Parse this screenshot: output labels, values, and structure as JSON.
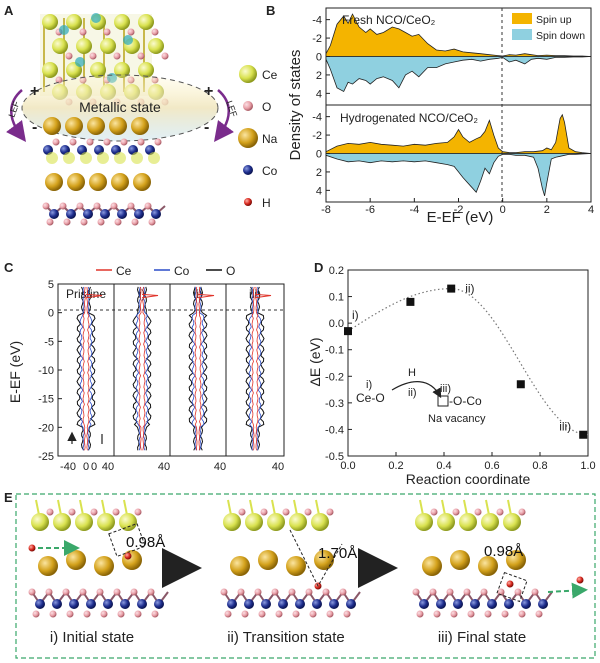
{
  "panels": {
    "A": {
      "label": "A",
      "metallic": "Metallic state",
      "plus": "+",
      "minus": "-",
      "lef_left": "LEF",
      "lef_right": "LEF",
      "legend": [
        {
          "symbol": "Ce",
          "color": "#d9e24f"
        },
        {
          "symbol": "O",
          "color": "#e9a0a8"
        },
        {
          "symbol": "Na",
          "color": "#d4a21c"
        },
        {
          "symbol": "Co",
          "color": "#1f2f8f"
        },
        {
          "symbol": "H",
          "color": "#d8281e"
        }
      ]
    },
    "B": {
      "label": "B",
      "top_title": "Fresh NCO/CeO₂",
      "bottom_title": "Hydrogenated NCO/CeO₂",
      "legend": {
        "up": "Spin up",
        "down": "Spin down"
      },
      "ylabel": "Density of states",
      "xlabel": "E-EF (eV)",
      "top_yticks": [
        "-4",
        "-2",
        "0",
        "2",
        "4"
      ],
      "bottom_yticks": [
        "-4",
        "-2",
        "0",
        "2",
        "4"
      ],
      "xticks": [
        "-8",
        "-6",
        "-4",
        "-2",
        "0",
        "2",
        "4"
      ]
    },
    "C": {
      "label": "C",
      "legend": [
        "Ce",
        "Co",
        "O"
      ],
      "legend_colors": [
        "#e0342a",
        "#2a4cc8",
        "#111111"
      ],
      "columns": [
        "Pristine",
        "i)",
        "ii)",
        "iii)"
      ],
      "yticks": [
        "5",
        "0",
        "-5",
        "-10",
        "-15",
        "-20",
        "-25"
      ],
      "xticks": [
        "-40",
        "0",
        "40",
        "40",
        "40",
        "40"
      ],
      "ylabel": "E-EF (eV)"
    },
    "D": {
      "label": "D",
      "ylabel": "ΔE (eV)",
      "xlabel": "Reaction coordinate",
      "yticks": [
        "0.2",
        "0.1",
        "0.0",
        "-0.1",
        "-0.2",
        "-0.3",
        "-0.4",
        "-0.5"
      ],
      "xticks": [
        "0.0",
        "0.2",
        "0.4",
        "0.6",
        "0.8",
        "1.0"
      ],
      "point_labels": [
        "i)",
        "ii)",
        "iii)"
      ],
      "scheme": {
        "left": "Ce-O",
        "i": "i)",
        "ii": "ii)",
        "iii": "iii)",
        "h": "H",
        "right": "-O-Co",
        "vacancy": "Na vacancy"
      }
    },
    "E": {
      "label": "E",
      "captions": [
        "i) Initial state",
        "ii) Transition state",
        "iii) Final state"
      ],
      "distances": [
        "0.98Å",
        "1.70Å",
        "0.98Å"
      ]
    }
  },
  "colors": {
    "spin_up": "#f4b400",
    "spin_down": "#8fd0e0",
    "ce": "#e0342a",
    "co": "#2a4cc8",
    "o": "#111111",
    "green_dash": "#3aa86a"
  },
  "chart_data": [
    {
      "type": "area",
      "title": "Fresh NCO/CeO₂",
      "xlabel": "E-EF (eV)",
      "ylabel": "Density of states",
      "xlim": [
        -8,
        4
      ],
      "ylim": [
        -5,
        5
      ],
      "series": [
        {
          "name": "Spin up",
          "x": [
            -8,
            -7.8,
            -7.5,
            -7.2,
            -7.0,
            -6.8,
            -6.5,
            -6.2,
            -6.0,
            -5.7,
            -5.4,
            -5.0,
            -4.7,
            -4.4,
            -4.1,
            -3.8,
            -3.4,
            -3.0,
            -2.6,
            -2.2,
            -1.8,
            -1.4,
            -1.0,
            -0.6,
            -0.2,
            0.0,
            0.3,
            0.6,
            1.0,
            1.3,
            1.6,
            2.0,
            2.4,
            2.8,
            3.2,
            3.6,
            4.0
          ],
          "y": [
            0.3,
            1.2,
            3.5,
            4.4,
            3.6,
            4.6,
            3.2,
            2.6,
            3.0,
            2.4,
            2.6,
            3.2,
            3.0,
            2.6,
            2.2,
            2.4,
            1.4,
            0.7,
            0.6,
            0.8,
            0.5,
            0.4,
            0.3,
            0.2,
            0.1,
            0.05,
            0.2,
            0.15,
            0.3,
            0.2,
            0.1,
            0.15,
            0.1,
            0.1,
            0.05,
            0.05,
            0
          ]
        },
        {
          "name": "Spin down",
          "x": [
            -8,
            -7.8,
            -7.5,
            -7.2,
            -7.0,
            -6.8,
            -6.5,
            -6.2,
            -6.0,
            -5.7,
            -5.4,
            -5.0,
            -4.7,
            -4.4,
            -4.1,
            -3.8,
            -3.4,
            -3.0,
            -2.6,
            -2.2,
            -1.8,
            -1.4,
            -1.0,
            -0.6,
            -0.2,
            0.0,
            0.3,
            0.6,
            1.0,
            1.3,
            1.6,
            2.0,
            2.4,
            2.8,
            3.2,
            3.6,
            4.0
          ],
          "y": [
            -0.3,
            -1.4,
            -3.4,
            -3.8,
            -2.8,
            -3.0,
            -2.4,
            -2.6,
            -3.0,
            -2.4,
            -2.2,
            -2.6,
            -3.4,
            -2.0,
            -1.6,
            -2.2,
            -1.2,
            -1.2,
            -0.8,
            -0.6,
            -0.4,
            -0.3,
            -0.5,
            -0.3,
            -0.2,
            -0.1,
            -0.6,
            -0.4,
            -0.8,
            -0.3,
            -0.2,
            -0.3,
            -0.1,
            -0.1,
            -0.05,
            -0.05,
            0
          ]
        }
      ]
    },
    {
      "type": "area",
      "title": "Hydrogenated NCO/CeO₂",
      "xlabel": "E-EF (eV)",
      "ylabel": "Density of states",
      "xlim": [
        -8,
        4
      ],
      "ylim": [
        -5,
        5
      ],
      "series": [
        {
          "name": "Spin up",
          "x": [
            -8,
            -7.5,
            -7.0,
            -6.5,
            -6.0,
            -5.5,
            -5.0,
            -4.5,
            -4.0,
            -3.5,
            -3.0,
            -2.5,
            -2.2,
            -2.0,
            -1.8,
            -1.5,
            -1.2,
            -1.0,
            -0.8,
            -0.6,
            -0.4,
            -0.2,
            0.0,
            0.3,
            0.6,
            1.0,
            1.4,
            1.8,
            2.0,
            2.2,
            2.4,
            2.6,
            2.7,
            2.8,
            3.0,
            3.3,
            3.6,
            4.0
          ],
          "y": [
            0.2,
            0.8,
            1.1,
            1.0,
            1.2,
            1.0,
            0.9,
            0.8,
            1.0,
            0.9,
            1.1,
            1.2,
            1.8,
            2.6,
            1.8,
            1.2,
            1.6,
            1.8,
            2.4,
            3.6,
            2.0,
            0.6,
            0.2,
            0.1,
            0.1,
            0.2,
            0.2,
            0.3,
            0.6,
            0.4,
            1.2,
            3.8,
            4.2,
            3.4,
            0.6,
            0.2,
            0.1,
            0
          ]
        },
        {
          "name": "Spin down",
          "x": [
            -8,
            -7.5,
            -7.0,
            -6.5,
            -6.0,
            -5.5,
            -5.0,
            -4.5,
            -4.0,
            -3.5,
            -3.0,
            -2.5,
            -2.2,
            -2.0,
            -1.8,
            -1.5,
            -1.2,
            -1.0,
            -0.8,
            -0.6,
            -0.4,
            -0.2,
            0.0,
            0.3,
            0.6,
            1.0,
            1.4,
            1.6,
            1.8,
            1.9,
            2.0,
            2.2,
            2.4,
            2.6,
            2.8,
            3.0,
            3.3,
            3.6,
            4.0
          ],
          "y": [
            -0.2,
            -0.6,
            -0.9,
            -0.8,
            -1.0,
            -0.8,
            -0.9,
            -0.8,
            -0.9,
            -0.8,
            -1.0,
            -1.2,
            -1.4,
            -2.0,
            -2.6,
            -3.4,
            -4.2,
            -3.0,
            -1.6,
            -2.2,
            -1.0,
            -0.3,
            -0.1,
            -0.1,
            -0.2,
            -0.2,
            -0.4,
            -1.6,
            -3.8,
            -4.6,
            -3.2,
            -0.6,
            -0.4,
            -0.3,
            -0.2,
            -0.1,
            -0.1,
            -0.05,
            0
          ]
        }
      ]
    },
    {
      "type": "scatter",
      "xlabel": "Reaction coordinate",
      "ylabel": "ΔE (eV)",
      "xlim": [
        0.0,
        1.0
      ],
      "ylim": [
        -0.5,
        0.2
      ],
      "series": [
        {
          "x": [
            0.0,
            0.26,
            0.43,
            0.72,
            0.98
          ],
          "y": [
            -0.03,
            0.08,
            0.13,
            -0.23,
            -0.42
          ]
        }
      ]
    }
  ]
}
